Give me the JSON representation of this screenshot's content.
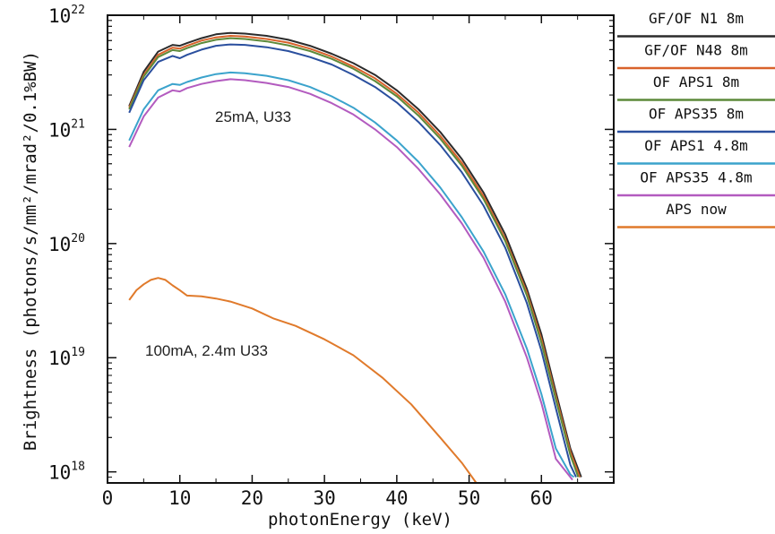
{
  "chart_data": {
    "type": "line",
    "title": "",
    "xlabel": "photonEnergy (keV)",
    "ylabel": "Brightness (photons/s/mm²/mrad²/0.1%BW)",
    "xlim": [
      0,
      70
    ],
    "ylim": [
      8e+17,
      1e+22
    ],
    "yscale": "log",
    "grid": false,
    "legend_position": "right",
    "x_ticks": [
      "0",
      "10",
      "20",
      "30",
      "40",
      "50",
      "60"
    ],
    "y_ticks": [
      {
        "base": "10",
        "exp": "22"
      },
      {
        "base": "10",
        "exp": "21"
      },
      {
        "base": "10",
        "exp": "20"
      },
      {
        "base": "10",
        "exp": "19"
      },
      {
        "base": "10",
        "exp": "18"
      }
    ],
    "annotations": [
      "25mA, U33",
      "100mA, 2.4m U33"
    ],
    "series": [
      {
        "name": "GF/OF N1  8m",
        "color": "#2b2b2b",
        "x": [
          3,
          5,
          7,
          9,
          10,
          11,
          13,
          15,
          17,
          19,
          22,
          25,
          28,
          31,
          34,
          37,
          40,
          43,
          46,
          49,
          52,
          55,
          58,
          60,
          62,
          64,
          65.5
        ],
        "y": [
          1.6e+21,
          3.2e+21,
          4.8e+21,
          5.5e+21,
          5.4e+21,
          5.7e+21,
          6.3e+21,
          6.8e+21,
          7e+21,
          6.9e+21,
          6.6e+21,
          6.1e+21,
          5.4e+21,
          4.6e+21,
          3.8e+21,
          3e+21,
          2.2e+21,
          1.5e+21,
          9.5e+20,
          5.5e+20,
          2.8e+20,
          1.2e+20,
          4e+19,
          1.6e+19,
          5e+18,
          1.6e+18,
          9e+17
        ]
      },
      {
        "name": "GF/OF N48  8m",
        "color": "#d9622b",
        "x": [
          3,
          5,
          7,
          9,
          10,
          11,
          13,
          15,
          17,
          19,
          22,
          25,
          28,
          31,
          34,
          37,
          40,
          43,
          46,
          49,
          52,
          55,
          58,
          60,
          62,
          64,
          65.3
        ],
        "y": [
          1.55e+21,
          3e+21,
          4.5e+21,
          5.2e+21,
          5.1e+21,
          5.4e+21,
          6e+21,
          6.4e+21,
          6.6e+21,
          6.5e+21,
          6.2e+21,
          5.75e+21,
          5.1e+21,
          4.35e+21,
          3.55e+21,
          2.8e+21,
          2.05e+21,
          1.4e+21,
          8.8e+20,
          5.1e+20,
          2.6e+20,
          1.1e+20,
          3.7e+19,
          1.45e+19,
          4.6e+18,
          1.5e+18,
          9e+17
        ]
      },
      {
        "name": "OF APS1  8m",
        "color": "#5d8a3a",
        "x": [
          3,
          5,
          7,
          9,
          10,
          11,
          13,
          15,
          17,
          19,
          22,
          25,
          28,
          31,
          34,
          37,
          40,
          43,
          46,
          49,
          52,
          55,
          58,
          60,
          62,
          64,
          65.1
        ],
        "y": [
          1.5e+21,
          2.9e+21,
          4.3e+21,
          4.95e+21,
          4.85e+21,
          5.15e+21,
          5.7e+21,
          6.1e+21,
          6.3e+21,
          6.2e+21,
          5.9e+21,
          5.45e+21,
          4.85e+21,
          4.15e+21,
          3.4e+21,
          2.65e+21,
          1.95e+21,
          1.32e+21,
          8.3e+20,
          4.8e+20,
          2.45e+20,
          1.05e+20,
          3.5e+19,
          1.35e+19,
          4.3e+18,
          1.4e+18,
          9e+17
        ]
      },
      {
        "name": "OF APS35  8m",
        "color": "#2a4f9e",
        "x": [
          3,
          5,
          7,
          9,
          10,
          11,
          13,
          15,
          17,
          19,
          22,
          25,
          28,
          31,
          34,
          37,
          40,
          43,
          46,
          49,
          52,
          55,
          58,
          60,
          62,
          64,
          64.8
        ],
        "y": [
          1.4e+21,
          2.7e+21,
          3.9e+21,
          4.4e+21,
          4.2e+21,
          4.5e+21,
          5e+21,
          5.4e+21,
          5.55e+21,
          5.5e+21,
          5.25e+21,
          4.85e+21,
          4.3e+21,
          3.7e+21,
          3e+21,
          2.35e+21,
          1.72e+21,
          1.16e+21,
          7.3e+20,
          4.2e+20,
          2.15e+20,
          9.2e+19,
          3e+19,
          1.15e+19,
          3.6e+18,
          1.15e+18,
          9e+17
        ]
      },
      {
        "name": "OF APS1  4.8m",
        "color": "#3ba3cc",
        "x": [
          3,
          5,
          7,
          9,
          10,
          11,
          13,
          15,
          17,
          19,
          22,
          25,
          28,
          31,
          34,
          37,
          40,
          43,
          46,
          49,
          52,
          55,
          58,
          60,
          62,
          64,
          64.5
        ],
        "y": [
          8e+20,
          1.5e+21,
          2.2e+21,
          2.5e+21,
          2.45e+21,
          2.6e+21,
          2.85e+21,
          3.05e+21,
          3.15e+21,
          3.1e+21,
          2.95e+21,
          2.7e+21,
          2.35e+21,
          1.95e+21,
          1.55e+21,
          1.15e+21,
          8e+20,
          5.2e+20,
          3.1e+20,
          1.7e+20,
          8.5e+19,
          3.6e+19,
          1.2e+19,
          4.8e+18,
          1.6e+18,
          9.5e+17,
          9e+17
        ]
      },
      {
        "name": "OF APS35  4.8m",
        "color": "#b35bbf",
        "x": [
          3,
          5,
          7,
          9,
          10,
          11,
          13,
          15,
          17,
          19,
          22,
          25,
          28,
          31,
          34,
          37,
          40,
          43,
          46,
          49,
          52,
          55,
          58,
          60,
          62,
          64,
          64.3
        ],
        "y": [
          7e+20,
          1.3e+21,
          1.9e+21,
          2.2e+21,
          2.15e+21,
          2.3e+21,
          2.5e+21,
          2.65e+21,
          2.75e+21,
          2.7e+21,
          2.55e+21,
          2.35e+21,
          2.05e+21,
          1.7e+21,
          1.35e+21,
          1e+21,
          7e+20,
          4.5e+20,
          2.7e+20,
          1.5e+20,
          7.5e+19,
          3.1e+19,
          1e+19,
          4e+18,
          1.3e+18,
          9e+17,
          8.5e+17
        ]
      },
      {
        "name": "APS now",
        "color": "#e07a2b",
        "x": [
          3,
          4,
          5,
          6,
          7,
          8,
          9,
          10,
          11,
          13,
          15,
          17,
          20,
          23,
          26,
          30,
          34,
          38,
          42,
          46,
          49,
          51
        ],
        "y": [
          3.2e+19,
          3.9e+19,
          4.4e+19,
          4.8e+19,
          5e+19,
          4.8e+19,
          4.3e+19,
          3.9e+19,
          3.5e+19,
          3.45e+19,
          3.3e+19,
          3.1e+19,
          2.7e+19,
          2.2e+19,
          1.9e+19,
          1.45e+19,
          1.05e+19,
          6.7e+18,
          3.9e+18,
          2e+18,
          1.2e+18,
          8e+17
        ]
      }
    ]
  }
}
